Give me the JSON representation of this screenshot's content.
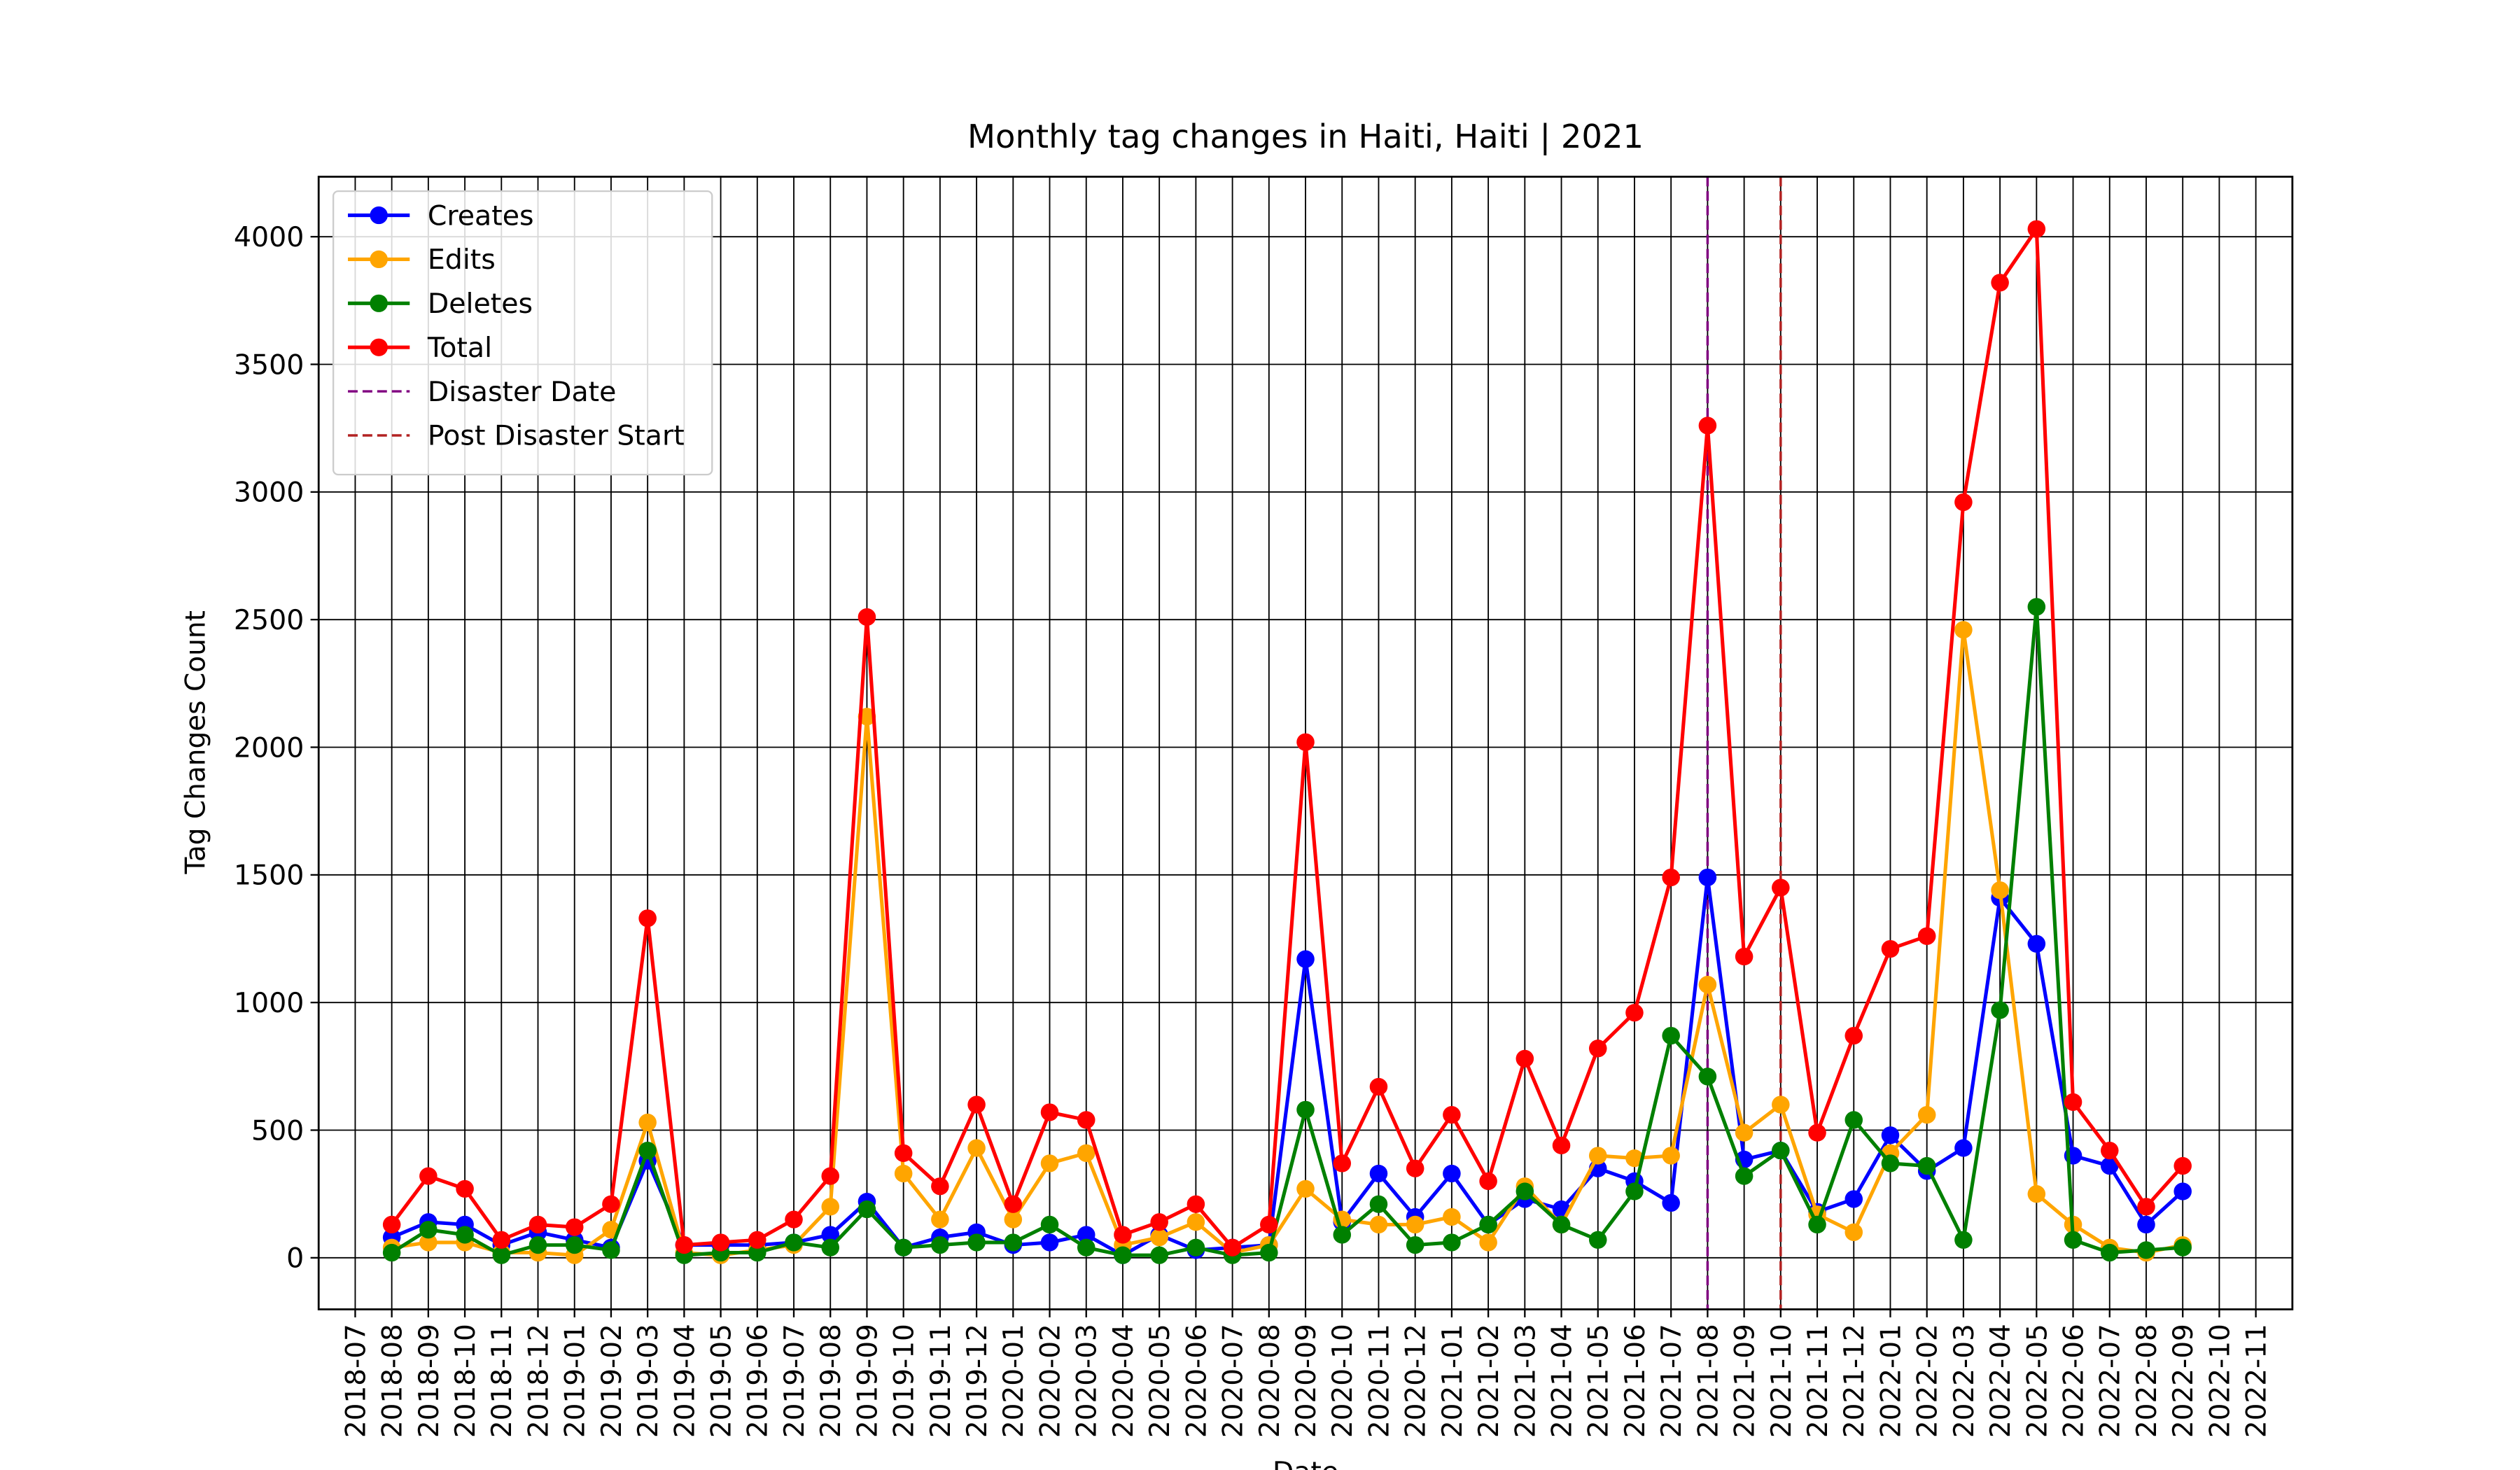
{
  "chart_data": {
    "type": "line",
    "title": "Monthly tag changes in Haiti, Haiti | 2021",
    "xlabel": "Date",
    "ylabel": "Tag Changes Count",
    "x": [
      "2018-08",
      "2018-09",
      "2018-10",
      "2018-11",
      "2018-12",
      "2019-01",
      "2019-02",
      "2019-03",
      "2019-04",
      "2019-05",
      "2019-06",
      "2019-07",
      "2019-08",
      "2019-09",
      "2019-10",
      "2019-11",
      "2019-12",
      "2020-01",
      "2020-02",
      "2020-03",
      "2020-04",
      "2020-05",
      "2020-06",
      "2020-07",
      "2020-08",
      "2020-09",
      "2020-10",
      "2020-11",
      "2020-12",
      "2021-01",
      "2021-02",
      "2021-03",
      "2021-04",
      "2021-05",
      "2021-06",
      "2021-07",
      "2021-08",
      "2021-09",
      "2021-10",
      "2021-11",
      "2021-12",
      "2022-01",
      "2022-02",
      "2022-03",
      "2022-04",
      "2022-05",
      "2022-06",
      "2022-07",
      "2022-08",
      "2022-09"
    ],
    "series": [
      {
        "name": "Creates",
        "color": "#0000ff",
        "values": [
          80,
          140,
          130,
          50,
          100,
          70,
          40,
          380,
          50,
          50,
          50,
          60,
          90,
          220,
          40,
          80,
          100,
          50,
          60,
          90,
          10,
          90,
          30,
          40,
          50,
          1170,
          140,
          330,
          160,
          330,
          130,
          230,
          190,
          350,
          300,
          215,
          1490,
          385,
          420,
          180,
          230,
          480,
          340,
          430,
          1410,
          1230,
          400,
          360,
          130,
          260
        ]
      },
      {
        "name": "Edits",
        "color": "#ffa500",
        "values": [
          40,
          60,
          60,
          20,
          20,
          10,
          110,
          530,
          20,
          10,
          30,
          50,
          200,
          2120,
          330,
          150,
          430,
          150,
          370,
          410,
          50,
          80,
          140,
          20,
          50,
          270,
          150,
          130,
          130,
          160,
          60,
          280,
          130,
          400,
          390,
          400,
          1070,
          490,
          600,
          170,
          100,
          410,
          560,
          2460,
          1440,
          250,
          130,
          40,
          20,
          50
        ]
      },
      {
        "name": "Deletes",
        "color": "#008000",
        "values": [
          20,
          110,
          90,
          10,
          50,
          50,
          30,
          420,
          10,
          20,
          20,
          60,
          40,
          190,
          40,
          50,
          60,
          60,
          130,
          40,
          10,
          10,
          40,
          10,
          20,
          580,
          90,
          210,
          50,
          60,
          130,
          260,
          130,
          70,
          260,
          870,
          710,
          320,
          420,
          130,
          540,
          370,
          360,
          70,
          970,
          2550,
          70,
          20,
          30,
          40
        ]
      },
      {
        "name": "Total",
        "color": "#ff0000",
        "values": [
          130,
          320,
          270,
          70,
          130,
          120,
          210,
          1330,
          50,
          60,
          70,
          150,
          320,
          2510,
          410,
          280,
          600,
          210,
          570,
          540,
          90,
          140,
          210,
          40,
          130,
          2020,
          370,
          670,
          350,
          560,
          300,
          780,
          440,
          820,
          960,
          1490,
          3260,
          1180,
          1450,
          490,
          870,
          1210,
          1260,
          2960,
          3820,
          4030,
          610,
          420,
          200,
          360
        ]
      }
    ],
    "vlines": [
      {
        "name": "Disaster Date",
        "x": "2021-08",
        "color": "#800080"
      },
      {
        "name": "Post Disaster Start",
        "x": "2021-10",
        "color": "#b22222"
      }
    ],
    "xlim": [
      "2018-06",
      "2022-12"
    ],
    "xticks": [
      "2018-07",
      "2018-08",
      "2018-09",
      "2018-10",
      "2018-11",
      "2018-12",
      "2019-01",
      "2019-02",
      "2019-03",
      "2019-04",
      "2019-05",
      "2019-06",
      "2019-07",
      "2019-08",
      "2019-09",
      "2019-10",
      "2019-11",
      "2019-12",
      "2020-01",
      "2020-02",
      "2020-03",
      "2020-04",
      "2020-05",
      "2020-06",
      "2020-07",
      "2020-08",
      "2020-09",
      "2020-10",
      "2020-11",
      "2020-12",
      "2021-01",
      "2021-02",
      "2021-03",
      "2021-04",
      "2021-05",
      "2021-06",
      "2021-07",
      "2021-08",
      "2021-09",
      "2021-10",
      "2021-11",
      "2021-12",
      "2022-01",
      "2022-02",
      "2022-03",
      "2022-04",
      "2022-05",
      "2022-06",
      "2022-07",
      "2022-08",
      "2022-09",
      "2022-10",
      "2022-11"
    ],
    "ylim": [
      -202,
      4235
    ],
    "yticks": [
      0,
      500,
      1000,
      1500,
      2000,
      2500,
      3000,
      3500,
      4000
    ],
    "grid": true,
    "legend": "upper left"
  }
}
